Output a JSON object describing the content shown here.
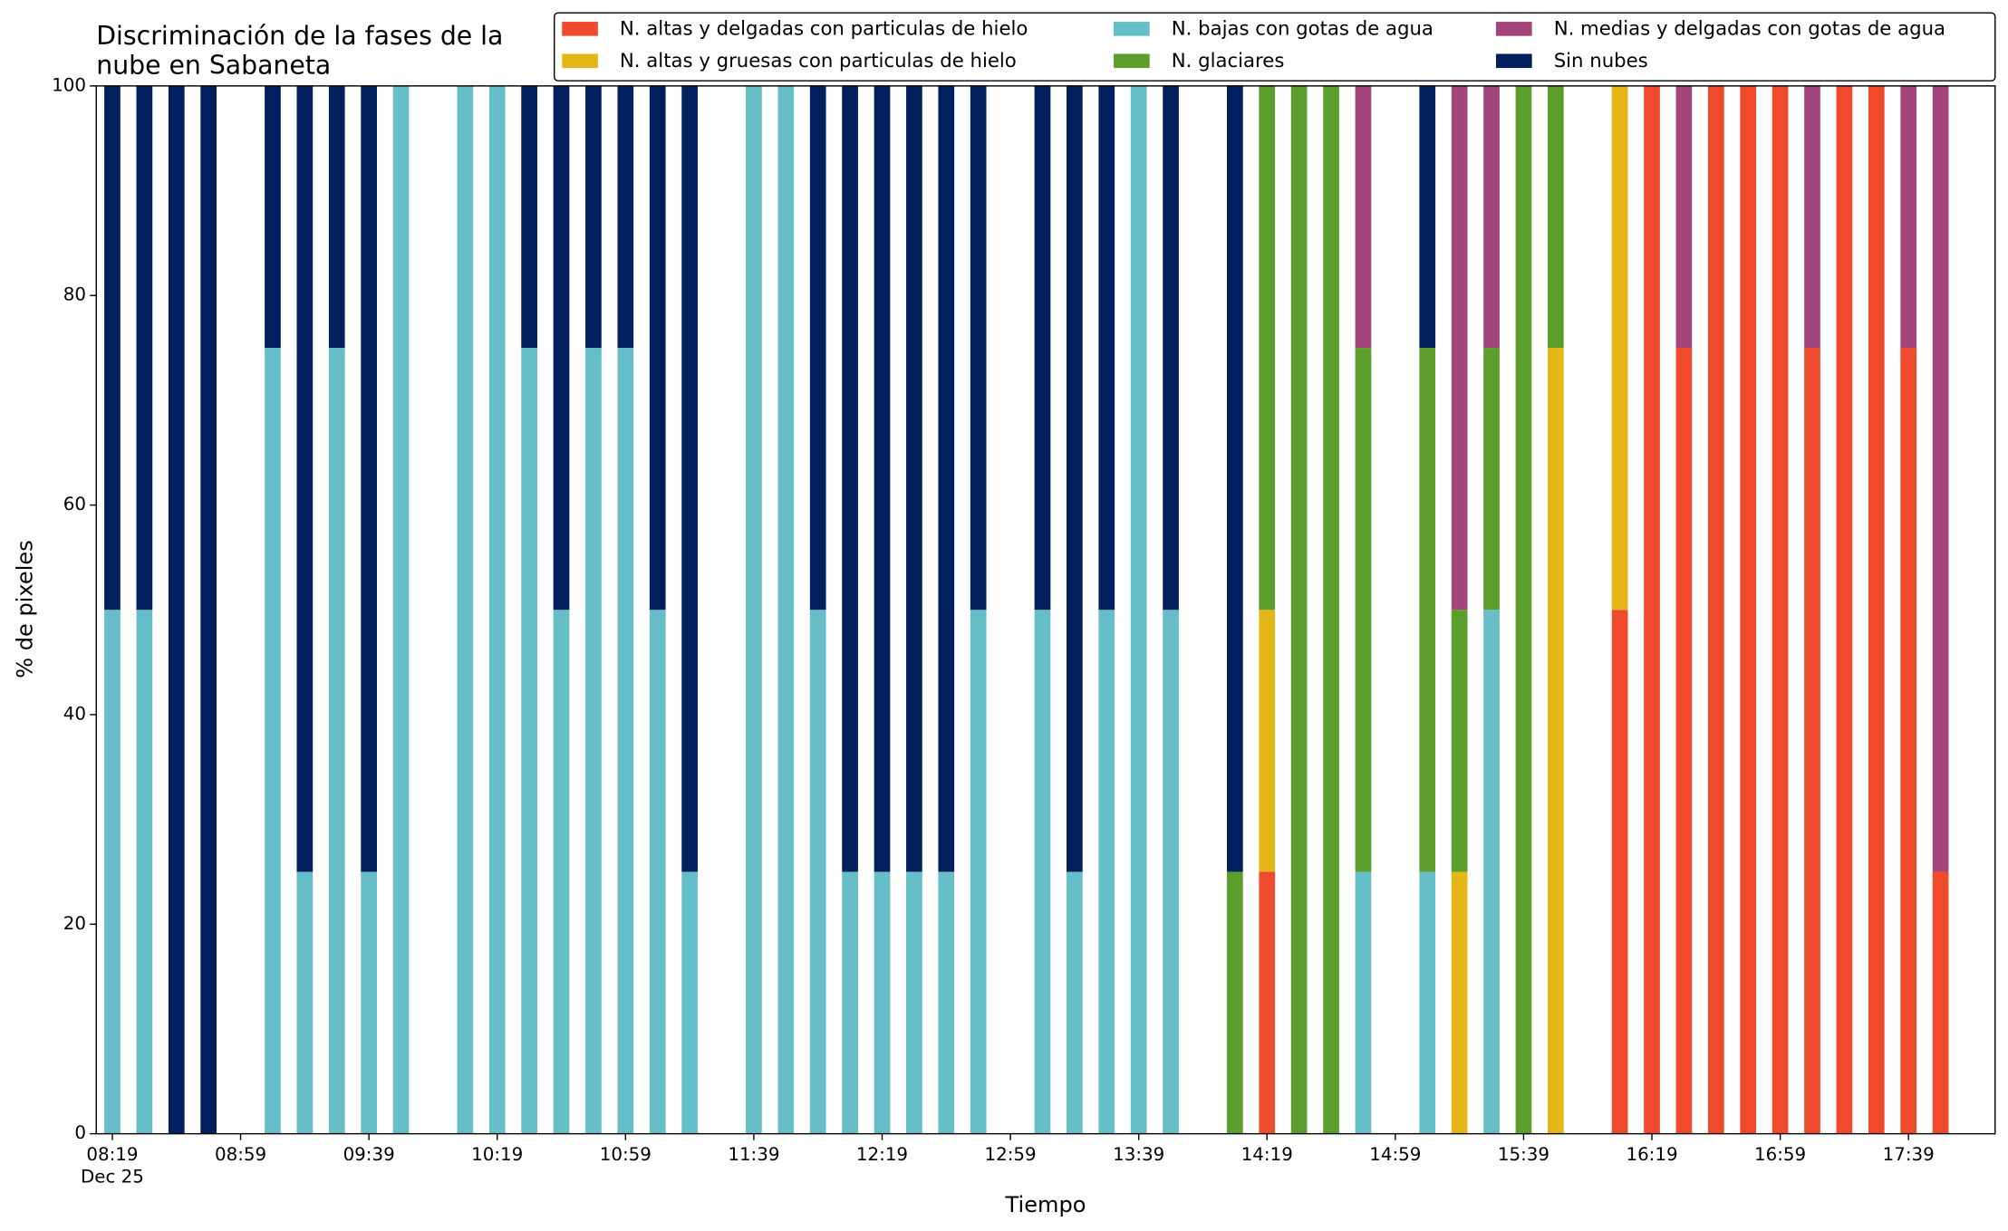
{
  "chart_data": {
    "type": "stacked_bar",
    "title": [
      "Discriminación de la fases de la",
      "nube en Sabaneta"
    ],
    "xlabel": "Tiempo",
    "ylabel": "% de pixeles",
    "x_date_label": "Dec 25",
    "x": [
      "08:19",
      "08:29",
      "08:39",
      "08:49",
      "09:09",
      "09:19",
      "09:29",
      "09:39",
      "09:49",
      "10:09",
      "10:19",
      "10:29",
      "10:39",
      "10:49",
      "10:59",
      "11:09",
      "11:19",
      "11:39",
      "11:49",
      "11:59",
      "12:09",
      "12:19",
      "12:29",
      "12:39",
      "12:49",
      "13:09",
      "13:19",
      "13:29",
      "13:39",
      "13:49",
      "14:09",
      "14:19",
      "14:29",
      "14:39",
      "14:49",
      "15:09",
      "15:19",
      "15:29",
      "15:39",
      "15:49",
      "16:09",
      "16:19",
      "16:29",
      "16:39",
      "16:49",
      "16:59",
      "17:09",
      "17:19",
      "17:29",
      "17:39",
      "17:49"
    ],
    "series": [
      {
        "name": "N. altas y delgadas con particulas de hielo",
        "color": "#ef4a2b",
        "values": [
          0,
          0,
          0,
          0,
          0,
          0,
          0,
          0,
          0,
          0,
          0,
          0,
          0,
          0,
          0,
          0,
          0,
          0,
          0,
          0,
          0,
          0,
          0,
          0,
          0,
          0,
          0,
          0,
          0,
          0,
          0,
          25,
          0,
          0,
          0,
          0,
          0,
          0,
          0,
          0,
          50,
          100,
          75,
          100,
          100,
          100,
          75,
          100,
          100,
          75,
          25
        ]
      },
      {
        "name": "N. altas y gruesas con particulas de hielo",
        "color": "#e5b716",
        "values": [
          0,
          0,
          0,
          0,
          0,
          0,
          0,
          0,
          0,
          0,
          0,
          0,
          0,
          0,
          0,
          0,
          0,
          0,
          0,
          0,
          0,
          0,
          0,
          0,
          0,
          0,
          0,
          0,
          0,
          0,
          0,
          25,
          0,
          0,
          0,
          0,
          25,
          0,
          0,
          75,
          50,
          0,
          0,
          0,
          0,
          0,
          0,
          0,
          0,
          0,
          0
        ]
      },
      {
        "name": "N. bajas con gotas de agua",
        "color": "#66bec8",
        "values": [
          50,
          50,
          0,
          0,
          75,
          25,
          75,
          25,
          100,
          100,
          100,
          75,
          50,
          75,
          75,
          50,
          25,
          100,
          100,
          50,
          25,
          25,
          25,
          25,
          50,
          50,
          25,
          50,
          100,
          50,
          0,
          0,
          0,
          0,
          25,
          25,
          0,
          50,
          0,
          0,
          0,
          0,
          0,
          0,
          0,
          0,
          0,
          0,
          0,
          0,
          0
        ]
      },
      {
        "name": "N. glaciares",
        "color": "#5c9e2c",
        "values": [
          0,
          0,
          0,
          0,
          0,
          0,
          0,
          0,
          0,
          0,
          0,
          0,
          0,
          0,
          0,
          0,
          0,
          0,
          0,
          0,
          0,
          0,
          0,
          0,
          0,
          0,
          0,
          0,
          0,
          0,
          25,
          50,
          100,
          100,
          50,
          50,
          25,
          25,
          100,
          25,
          0,
          0,
          0,
          0,
          0,
          0,
          0,
          0,
          0,
          0,
          0
        ]
      },
      {
        "name": "N. medias y delgadas con gotas de agua",
        "color": "#a3457b",
        "values": [
          0,
          0,
          0,
          0,
          0,
          0,
          0,
          0,
          0,
          0,
          0,
          0,
          0,
          0,
          0,
          0,
          0,
          0,
          0,
          0,
          0,
          0,
          0,
          0,
          0,
          0,
          0,
          0,
          0,
          0,
          0,
          0,
          0,
          0,
          25,
          0,
          50,
          25,
          0,
          0,
          0,
          0,
          25,
          0,
          0,
          0,
          25,
          0,
          0,
          25,
          75
        ]
      },
      {
        "name": "Sin nubes",
        "color": "#02205e",
        "values": [
          50,
          50,
          100,
          100,
          25,
          75,
          25,
          75,
          0,
          0,
          0,
          25,
          50,
          25,
          25,
          50,
          75,
          0,
          0,
          50,
          75,
          75,
          75,
          75,
          50,
          50,
          75,
          50,
          0,
          50,
          75,
          0,
          0,
          0,
          0,
          25,
          0,
          0,
          0,
          0,
          0,
          0,
          0,
          0,
          0,
          0,
          0,
          0,
          0,
          0,
          0
        ]
      }
    ],
    "xlim": [
      "08:14",
      "18:06"
    ],
    "xticks": [
      "08:19",
      "08:59",
      "09:39",
      "10:19",
      "10:59",
      "11:39",
      "12:19",
      "12:59",
      "13:39",
      "14:19",
      "14:59",
      "15:39",
      "16:19",
      "16:59",
      "17:39"
    ],
    "ylim": [
      0,
      100
    ],
    "yticks": [
      0,
      20,
      40,
      60,
      80,
      100
    ],
    "grid": false,
    "legend": "top right"
  }
}
